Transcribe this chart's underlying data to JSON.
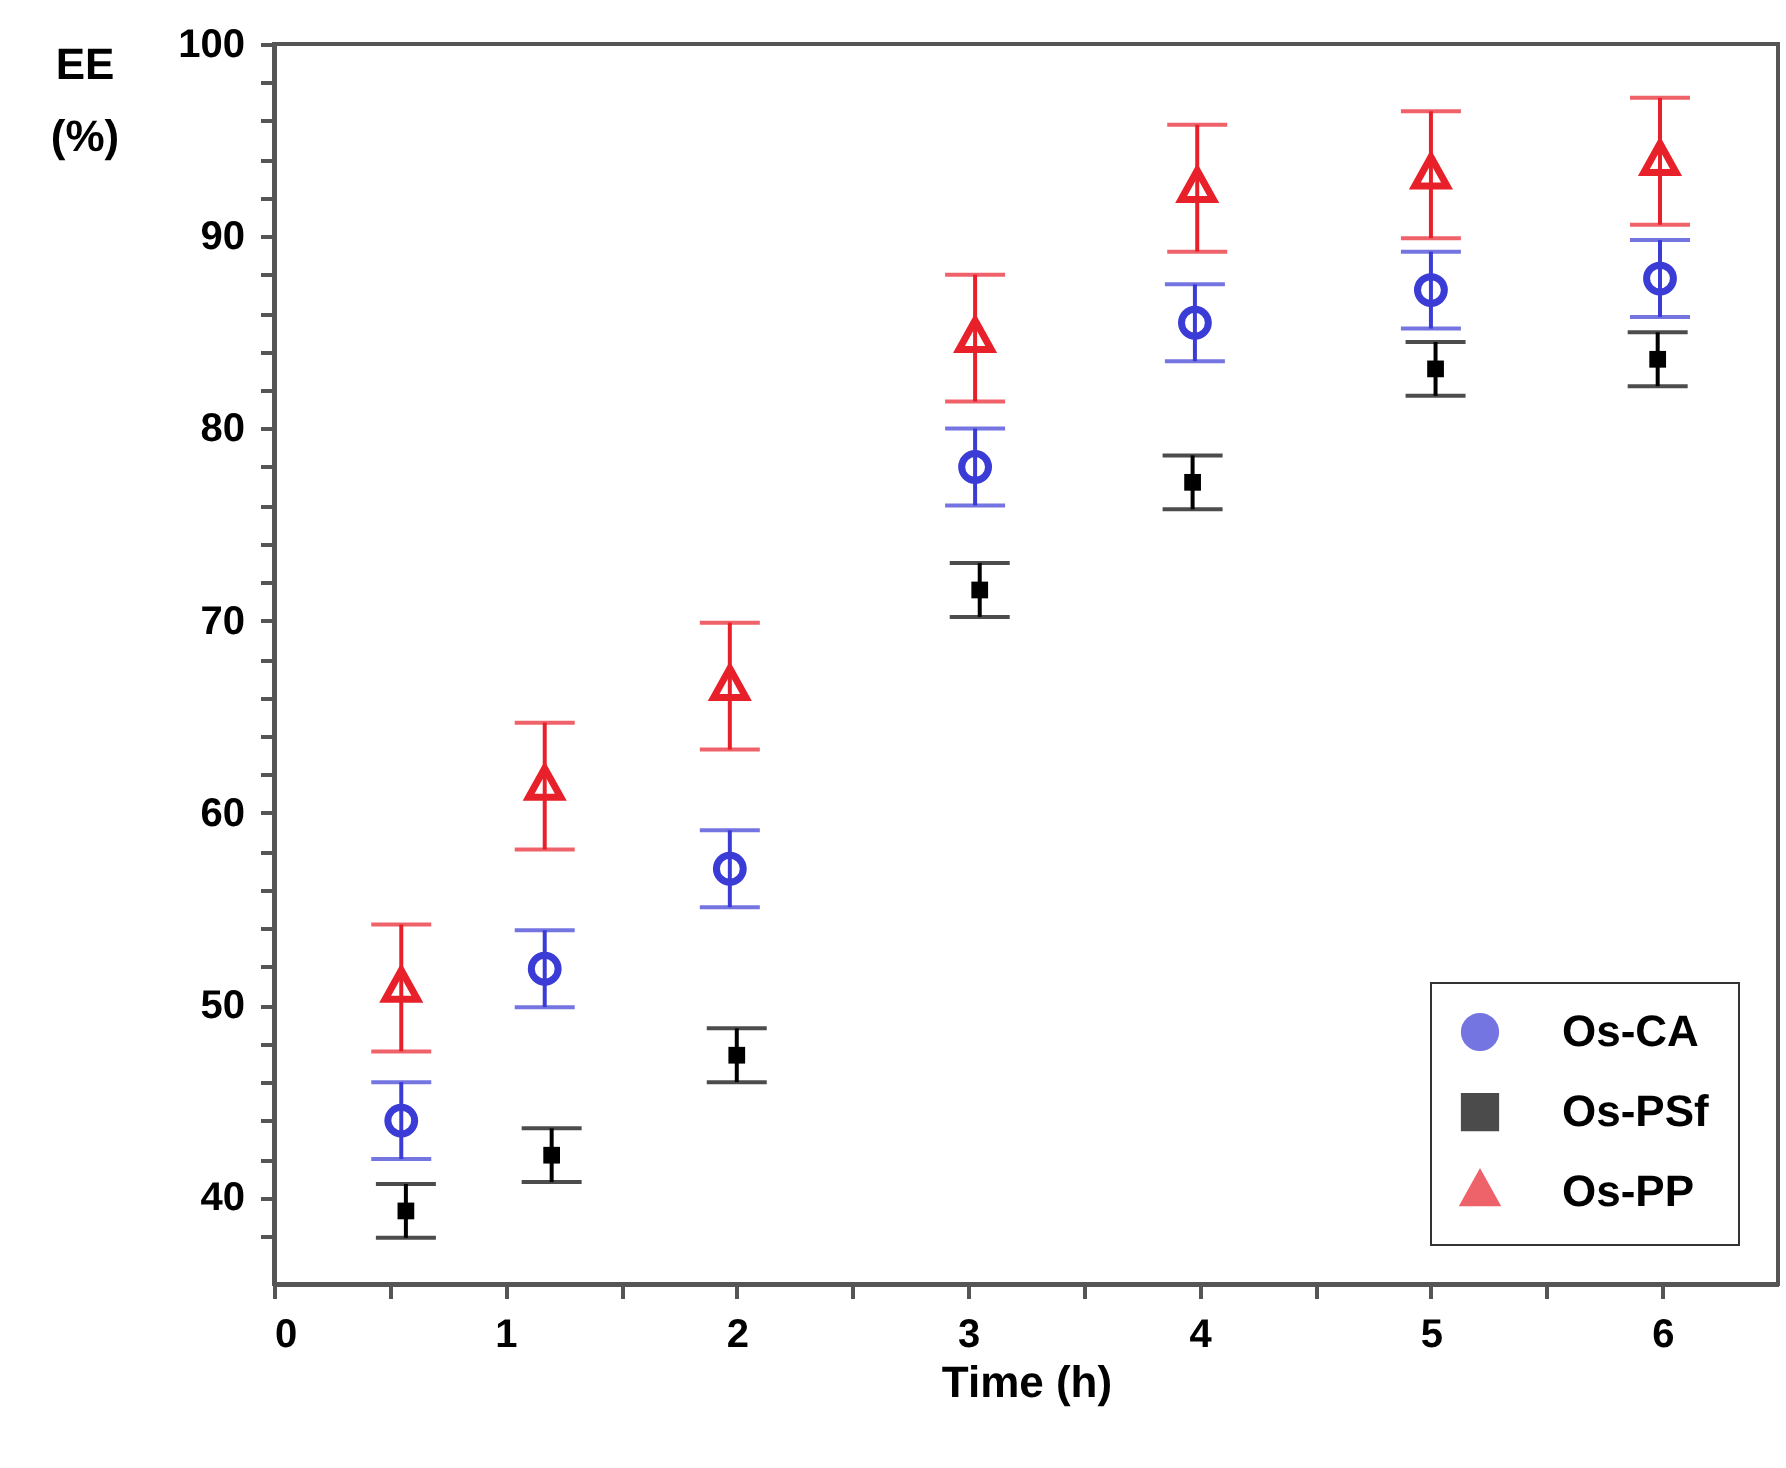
{
  "chart_data": {
    "type": "scatter",
    "xlabel": "Time (h)",
    "ylabel": "EE (%)",
    "xlim": [
      0,
      6.5
    ],
    "ylim": [
      35.5,
      100
    ],
    "xticks": [
      0,
      {
        "value": 0.5,
        "label": null
      },
      1,
      {
        "value": 1.5,
        "label": null
      },
      2,
      {
        "value": 2.5,
        "label": null
      },
      3,
      {
        "value": 3.5,
        "label": null
      },
      4,
      {
        "value": 4.5,
        "label": null
      },
      5,
      {
        "value": 5.5,
        "label": null
      },
      6
    ],
    "yticks": [
      {
        "value": 38,
        "label": null
      },
      40,
      {
        "value": 42,
        "label": null
      },
      {
        "value": 44,
        "label": null
      },
      {
        "value": 46,
        "label": null
      },
      {
        "value": 48,
        "label": null
      },
      50,
      {
        "value": 52,
        "label": null
      },
      {
        "value": 54,
        "label": null
      },
      {
        "value": 56,
        "label": null
      },
      {
        "value": 58,
        "label": null
      },
      60,
      {
        "value": 62,
        "label": null
      },
      {
        "value": 64,
        "label": null
      },
      {
        "value": 66,
        "label": null
      },
      {
        "value": 68,
        "label": null
      },
      70,
      {
        "value": 72,
        "label": null
      },
      {
        "value": 74,
        "label": null
      },
      {
        "value": 76,
        "label": null
      },
      {
        "value": 78,
        "label": null
      },
      80,
      {
        "value": 82,
        "label": null
      },
      {
        "value": 84,
        "label": null
      },
      {
        "value": 86,
        "label": null
      },
      {
        "value": 88,
        "label": null
      },
      90,
      {
        "value": 92,
        "label": null
      },
      {
        "value": 94,
        "label": null
      },
      {
        "value": 96,
        "label": null
      },
      {
        "value": 98,
        "label": null
      },
      100
    ],
    "grid": false,
    "legend": "bottom right",
    "series": [
      {
        "name": "Os-CA",
        "color": "#3b3bd6",
        "marker": "circle",
        "x": [
          0.55,
          1.17,
          1.97,
          3.03,
          3.98,
          5.0,
          5.99
        ],
        "values": [
          44.0,
          51.9,
          57.1,
          78.0,
          85.5,
          87.2,
          87.8
        ],
        "errors": [
          2,
          2,
          2,
          2,
          2,
          2,
          2
        ]
      },
      {
        "name": "Os-PSf",
        "color": "#000000",
        "marker": "square",
        "x": [
          0.57,
          1.2,
          2.0,
          3.05,
          3.97,
          5.02,
          5.98
        ],
        "values": [
          39.3,
          42.2,
          47.4,
          71.6,
          77.2,
          83.1,
          83.6
        ],
        "errors": [
          1.4,
          1.4,
          1.4,
          1.4,
          1.4,
          1.4,
          1.4
        ]
      },
      {
        "name": "Os-PP",
        "color": "#e8202a",
        "marker": "triangle",
        "x": [
          0.55,
          1.17,
          1.97,
          3.03,
          3.99,
          5.0,
          5.99
        ],
        "values": [
          50.9,
          61.4,
          66.6,
          84.7,
          92.5,
          93.2,
          93.9
        ],
        "errors": [
          3.3,
          3.3,
          3.3,
          3.3,
          3.3,
          3.3,
          3.3
        ]
      }
    ]
  }
}
